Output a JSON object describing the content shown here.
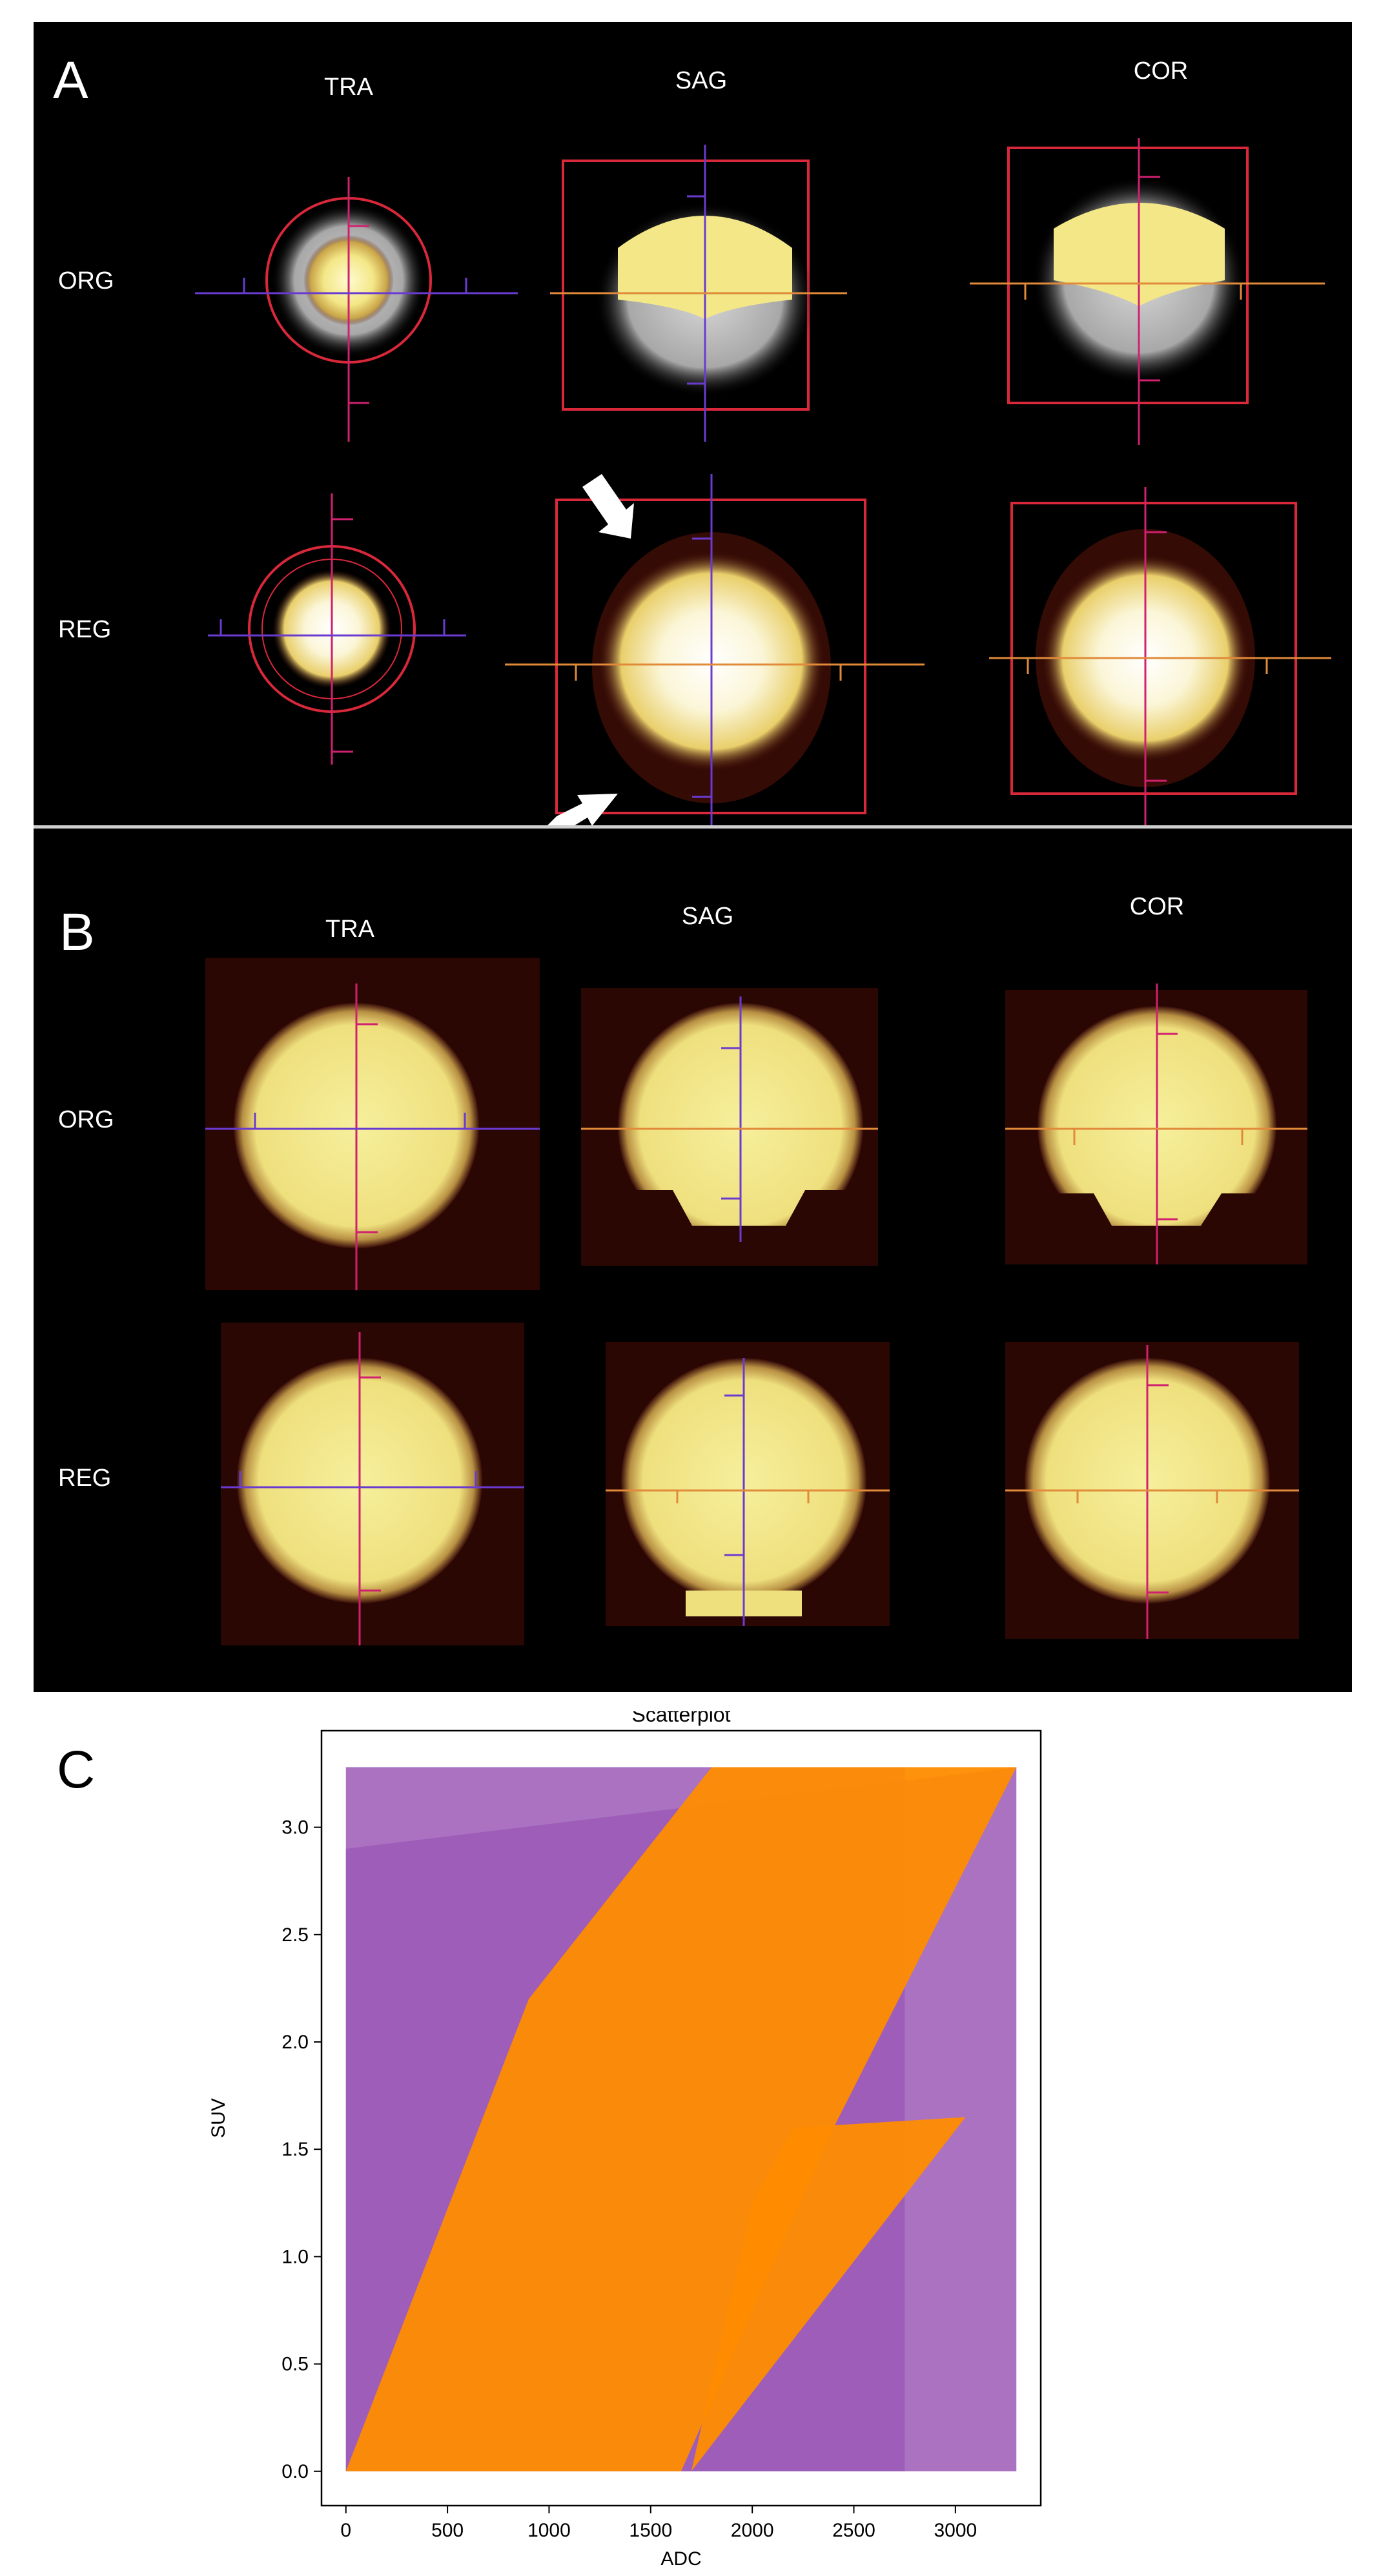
{
  "panel_a": {
    "letter": "A",
    "columns": [
      "TRA",
      "SAG",
      "COR"
    ],
    "rows": [
      "ORG",
      "REG"
    ]
  },
  "panel_b": {
    "letter": "B",
    "columns": [
      "TRA",
      "SAG",
      "COR"
    ],
    "rows": [
      "ORG",
      "REG"
    ]
  },
  "panel_c": {
    "letter": "C"
  },
  "colors": {
    "background": "#000000",
    "blob_core": "#f2ee9a",
    "blob_edge": "#c9b15a",
    "frame_red": "#d8283a",
    "crosshair_magenta": "#d02070",
    "crosshair_violet": "#6a3bd0",
    "crosshair_orange": "#e08a3a",
    "series_purple": "#9b59b6",
    "series_orange": "#ff8c00"
  },
  "chart_data": {
    "type": "scatter",
    "title": "Scatterplot",
    "xlabel": "ADC",
    "ylabel": "SUV",
    "xlim": [
      -120,
      3420
    ],
    "ylim": [
      -0.16,
      3.45
    ],
    "x_ticks": [
      0,
      500,
      1000,
      1500,
      2000,
      2500,
      3000
    ],
    "y_ticks": [
      0.0,
      0.5,
      1.0,
      1.5,
      2.0,
      2.5,
      3.0
    ],
    "x_tick_labels": [
      "0",
      "500",
      "1000",
      "1500",
      "2000",
      "2500",
      "3000"
    ],
    "y_tick_labels": [
      "0.0",
      "0.5",
      "1.0",
      "1.5",
      "2.0",
      "2.5",
      "3.0"
    ],
    "grid": false,
    "series": [
      {
        "color": "#9b59b6",
        "bands": [
          {
            "x": [
              0,
              0,
              2750,
              2750
            ],
            "y": [
              0.0,
              3.28,
              3.28,
              0.0
            ]
          },
          {
            "x": [
              0,
              0,
              3300,
              3300
            ],
            "y": [
              0.0,
              2.9,
              3.28,
              0.0
            ]
          }
        ]
      },
      {
        "color": "#ff8c00",
        "bands": [
          {
            "x": [
              0,
              520,
              1650,
              2400,
              3300,
              2600,
              1800,
              900
            ],
            "y": [
              0.0,
              0.0,
              0.0,
              1.6,
              3.28,
              3.28,
              3.28,
              2.2
            ]
          },
          {
            "x": [
              1700,
              2000,
              2200,
              3050
            ],
            "y": [
              0.0,
              1.25,
              1.6,
              1.65
            ]
          }
        ]
      }
    ]
  }
}
